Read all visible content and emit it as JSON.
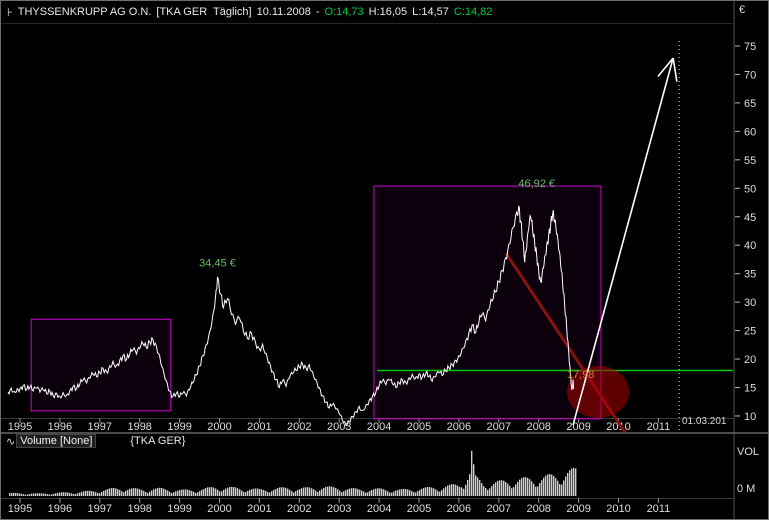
{
  "titlebar": {
    "icon": "⊦",
    "instrument": "THYSSENKRUPP AG O.N.",
    "symbol_info": "[TKA GER  Täglich]",
    "date": "10.11.2008",
    "sep": "-",
    "open_label": "O:14,73",
    "high_label": "H:16,05",
    "low_label": "L:14,57",
    "close_label": "C:14,82",
    "currency": "€"
  },
  "volume_header": {
    "icon": "∿",
    "label": "Volume [None]",
    "symbol": "{TKA GER}",
    "axis_label": "VOL",
    "zero_label": "0 M"
  },
  "colors": {
    "accent_green": "#00cc44",
    "magenta": "#d400d4",
    "support_green": "#00c800",
    "label_green": "#66bb66",
    "orange": "#cc8833",
    "dark_red": "#8b1010",
    "ellipse_red": "#aa0000",
    "white": "#ffffff",
    "axis_text": "#dddddd",
    "volume_bar": "#cfcfcf"
  },
  "chart_data": {
    "type": "line",
    "title": "THYSSENKRUPP AG O.N. [TKA GER Täglich] 10.11.2008",
    "ylabel": "€",
    "volume_label": "VOL",
    "yticks": [
      75,
      70,
      65,
      60,
      55,
      50,
      45,
      40,
      35,
      30,
      25,
      20,
      15,
      10
    ],
    "xticks": [
      1995,
      1996,
      1997,
      1998,
      1999,
      2000,
      2001,
      2002,
      2003,
      2004,
      2005,
      2006,
      2007,
      2008,
      2009,
      2010,
      2011
    ],
    "x_range": [
      1994.7,
      2011.8
    ],
    "y_range": [
      7,
      77
    ],
    "grid": false,
    "price_series": [
      [
        1994.7,
        14.2
      ],
      [
        1994.78,
        14.9
      ],
      [
        1994.86,
        14.3
      ],
      [
        1994.93,
        14.8
      ],
      [
        1995.0,
        14.8
      ],
      [
        1995.08,
        15.4
      ],
      [
        1995.17,
        14.7
      ],
      [
        1995.25,
        15.1
      ],
      [
        1995.33,
        14.4
      ],
      [
        1995.42,
        14.9
      ],
      [
        1995.5,
        14.2
      ],
      [
        1995.58,
        14.6
      ],
      [
        1995.67,
        13.9
      ],
      [
        1995.75,
        14.3
      ],
      [
        1995.83,
        13.6
      ],
      [
        1995.92,
        14.0
      ],
      [
        1996.0,
        13.4
      ],
      [
        1996.08,
        14.1
      ],
      [
        1996.17,
        13.7
      ],
      [
        1996.25,
        14.5
      ],
      [
        1996.33,
        15.2
      ],
      [
        1996.42,
        14.8
      ],
      [
        1996.5,
        15.6
      ],
      [
        1996.58,
        16.3
      ],
      [
        1996.67,
        15.8
      ],
      [
        1996.75,
        16.6
      ],
      [
        1996.83,
        17.3
      ],
      [
        1996.92,
        16.9
      ],
      [
        1997.0,
        17.6
      ],
      [
        1997.08,
        18.4
      ],
      [
        1997.17,
        17.8
      ],
      [
        1997.25,
        18.8
      ],
      [
        1997.33,
        19.6
      ],
      [
        1997.42,
        18.9
      ],
      [
        1997.5,
        19.8
      ],
      [
        1997.58,
        20.6
      ],
      [
        1997.67,
        19.9
      ],
      [
        1997.75,
        20.8
      ],
      [
        1997.83,
        21.6
      ],
      [
        1997.92,
        20.9
      ],
      [
        1998.0,
        21.8
      ],
      [
        1998.08,
        22.7
      ],
      [
        1998.17,
        21.9
      ],
      [
        1998.25,
        23.0
      ],
      [
        1998.33,
        23.5
      ],
      [
        1998.42,
        22.3
      ],
      [
        1998.5,
        20.6
      ],
      [
        1998.58,
        18.4
      ],
      [
        1998.67,
        16.2
      ],
      [
        1998.75,
        14.4
      ],
      [
        1998.83,
        13.4
      ],
      [
        1998.92,
        14.0
      ],
      [
        1999.0,
        13.3
      ],
      [
        1999.08,
        14.0
      ],
      [
        1999.17,
        13.5
      ],
      [
        1999.25,
        14.6
      ],
      [
        1999.33,
        15.8
      ],
      [
        1999.42,
        17.2
      ],
      [
        1999.5,
        18.8
      ],
      [
        1999.58,
        20.6
      ],
      [
        1999.67,
        22.6
      ],
      [
        1999.75,
        24.8
      ],
      [
        1999.83,
        27.6
      ],
      [
        1999.9,
        31.0
      ],
      [
        1999.95,
        34.45
      ],
      [
        2000.03,
        31.4
      ],
      [
        2000.1,
        29.0
      ],
      [
        2000.2,
        30.6
      ],
      [
        2000.3,
        27.8
      ],
      [
        2000.4,
        26.0
      ],
      [
        2000.5,
        27.2
      ],
      [
        2000.6,
        24.8
      ],
      [
        2000.7,
        23.6
      ],
      [
        2000.8,
        24.6
      ],
      [
        2000.9,
        23.0
      ],
      [
        2001.0,
        21.8
      ],
      [
        2001.08,
        22.6
      ],
      [
        2001.17,
        21.0
      ],
      [
        2001.25,
        19.4
      ],
      [
        2001.33,
        17.8
      ],
      [
        2001.42,
        16.4
      ],
      [
        2001.5,
        15.0
      ],
      [
        2001.58,
        16.2
      ],
      [
        2001.67,
        15.2
      ],
      [
        2001.75,
        16.6
      ],
      [
        2001.83,
        17.4
      ],
      [
        2001.92,
        18.0
      ],
      [
        2002.0,
        18.6
      ],
      [
        2002.08,
        19.2
      ],
      [
        2002.17,
        18.4
      ],
      [
        2002.25,
        19.0
      ],
      [
        2002.33,
        17.8
      ],
      [
        2002.42,
        16.4
      ],
      [
        2002.5,
        15.0
      ],
      [
        2002.58,
        13.6
      ],
      [
        2002.67,
        12.4
      ],
      [
        2002.75,
        11.4
      ],
      [
        2002.83,
        12.0
      ],
      [
        2002.92,
        11.2
      ],
      [
        2003.0,
        10.4
      ],
      [
        2003.08,
        9.2
      ],
      [
        2003.17,
        8.3
      ],
      [
        2003.25,
        9.0
      ],
      [
        2003.33,
        9.9
      ],
      [
        2003.42,
        10.8
      ],
      [
        2003.5,
        11.7
      ],
      [
        2003.58,
        11.0
      ],
      [
        2003.67,
        11.9
      ],
      [
        2003.75,
        12.7
      ],
      [
        2003.83,
        13.4
      ],
      [
        2003.92,
        14.2
      ],
      [
        2004.0,
        15.3
      ],
      [
        2004.08,
        16.1
      ],
      [
        2004.17,
        15.5
      ],
      [
        2004.25,
        16.3
      ],
      [
        2004.33,
        15.7
      ],
      [
        2004.42,
        15.0
      ],
      [
        2004.5,
        15.8
      ],
      [
        2004.58,
        16.4
      ],
      [
        2004.67,
        15.9
      ],
      [
        2004.75,
        16.7
      ],
      [
        2004.83,
        17.3
      ],
      [
        2004.92,
        16.8
      ],
      [
        2005.0,
        17.4
      ],
      [
        2005.08,
        16.8
      ],
      [
        2005.17,
        17.5
      ],
      [
        2005.25,
        16.9
      ],
      [
        2005.33,
        16.1
      ],
      [
        2005.42,
        16.9
      ],
      [
        2005.5,
        17.6
      ],
      [
        2005.58,
        17.1
      ],
      [
        2005.67,
        17.9
      ],
      [
        2005.75,
        18.5
      ],
      [
        2005.83,
        19.1
      ],
      [
        2005.92,
        19.8
      ],
      [
        2006.0,
        20.6
      ],
      [
        2006.08,
        21.8
      ],
      [
        2006.17,
        23.2
      ],
      [
        2006.25,
        24.6
      ],
      [
        2006.33,
        26.0
      ],
      [
        2006.42,
        24.6
      ],
      [
        2006.5,
        26.4
      ],
      [
        2006.58,
        27.8
      ],
      [
        2006.67,
        26.6
      ],
      [
        2006.75,
        28.6
      ],
      [
        2006.83,
        30.2
      ],
      [
        2006.92,
        31.8
      ],
      [
        2007.0,
        33.6
      ],
      [
        2007.08,
        35.6
      ],
      [
        2007.17,
        37.8
      ],
      [
        2007.25,
        40.2
      ],
      [
        2007.33,
        42.8
      ],
      [
        2007.42,
        45.2
      ],
      [
        2007.5,
        46.92
      ],
      [
        2007.55,
        44.2
      ],
      [
        2007.6,
        40.8
      ],
      [
        2007.65,
        37.0
      ],
      [
        2007.7,
        39.6
      ],
      [
        2007.75,
        42.8
      ],
      [
        2007.8,
        44.9
      ],
      [
        2007.85,
        42.4
      ],
      [
        2007.9,
        40.2
      ],
      [
        2007.95,
        38.2
      ],
      [
        2008.0,
        35.6
      ],
      [
        2008.05,
        33.6
      ],
      [
        2008.1,
        35.9
      ],
      [
        2008.15,
        38.0
      ],
      [
        2008.2,
        40.0
      ],
      [
        2008.25,
        41.8
      ],
      [
        2008.3,
        43.6
      ],
      [
        2008.35,
        45.5
      ],
      [
        2008.4,
        44.1
      ],
      [
        2008.45,
        41.9
      ],
      [
        2008.5,
        39.3
      ],
      [
        2008.55,
        36.5
      ],
      [
        2008.6,
        33.1
      ],
      [
        2008.65,
        29.5
      ],
      [
        2008.7,
        25.7
      ],
      [
        2008.75,
        21.5
      ],
      [
        2008.8,
        17.3
      ],
      [
        2008.83,
        14.57
      ],
      [
        2008.86,
        16.4
      ],
      [
        2008.88,
        14.82
      ]
    ],
    "volume_envelope": [
      [
        1994.7,
        0.07
      ],
      [
        1995.5,
        0.06
      ],
      [
        1996,
        0.08
      ],
      [
        1996.5,
        0.1
      ],
      [
        1997,
        0.14
      ],
      [
        1997.5,
        0.2
      ],
      [
        1998,
        0.16
      ],
      [
        1998.5,
        0.18
      ],
      [
        1999,
        0.14
      ],
      [
        1999.5,
        0.16
      ],
      [
        1999.9,
        0.22
      ],
      [
        2000.3,
        0.2
      ],
      [
        2001,
        0.16
      ],
      [
        2001.7,
        0.2
      ],
      [
        2002,
        0.18
      ],
      [
        2002.5,
        0.22
      ],
      [
        2003,
        0.2
      ],
      [
        2003.5,
        0.16
      ],
      [
        2004,
        0.17
      ],
      [
        2004.5,
        0.15
      ],
      [
        2005,
        0.18
      ],
      [
        2005.5,
        0.22
      ],
      [
        2006,
        0.28
      ],
      [
        2006.25,
        0.55
      ],
      [
        2006.3,
        1.0
      ],
      [
        2006.4,
        0.45
      ],
      [
        2006.6,
        0.3
      ],
      [
        2007,
        0.34
      ],
      [
        2007.5,
        0.4
      ],
      [
        2008,
        0.44
      ],
      [
        2008.4,
        0.5
      ],
      [
        2008.7,
        0.58
      ],
      [
        2008.9,
        0.62
      ]
    ],
    "annotations": {
      "boxes": [
        {
          "name": "drawn-box-1996-1998",
          "x1": 1995.28,
          "x2": 1998.78,
          "p1": 10.9,
          "p2": 27.0
        },
        {
          "name": "drawn-box-2004-2009",
          "x1": 2003.87,
          "x2": 2009.56,
          "p1": 9.5,
          "p2": 50.4
        }
      ],
      "support_line": {
        "price": 17.98,
        "x_start": 2003.95,
        "to_right_edge": true
      },
      "trend_line": {
        "x1": 2007.18,
        "p1": 38.6,
        "x2": 2010.25,
        "p2": 6.2
      },
      "ellipse": {
        "x": 2009.49,
        "p": 14.25,
        "rx_years": 0.78,
        "ry_price": 4.57
      },
      "arrow": {
        "x1": 2008.86,
        "p1": 8.4,
        "x2": 2011.37,
        "p2": 72.9
      },
      "future_line": {
        "x": 2011.52,
        "label": "01.03.201"
      },
      "labels": [
        {
          "text": "34,45 €",
          "x": 1999.95,
          "p": 36.3,
          "color": "label_green"
        },
        {
          "text": "46,92 €",
          "x": 2007.95,
          "p": 50.2,
          "color": "label_green"
        },
        {
          "text": "17,98",
          "x": 2009.05,
          "p": 16.7,
          "color": "orange"
        }
      ]
    }
  }
}
